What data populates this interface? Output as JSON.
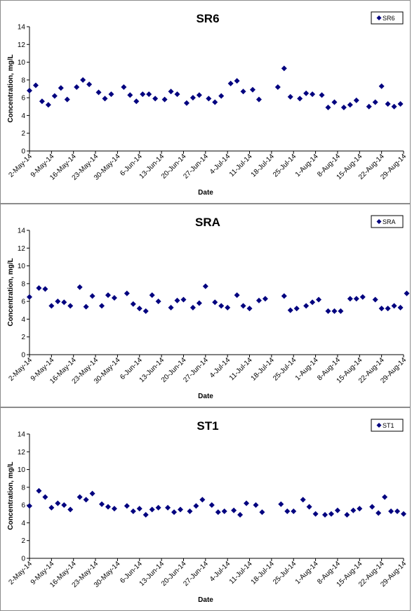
{
  "chart_data": [
    {
      "type": "scatter",
      "title": "SR6",
      "xlabel": "Date",
      "ylabel": "Concentration, mg/L",
      "ylim": [
        0,
        14
      ],
      "yticks": [
        0,
        2,
        4,
        6,
        8,
        10,
        12,
        14
      ],
      "xlim": [
        "2014-05-02",
        "2014-08-29"
      ],
      "xtick_labels": [
        "2-May-14",
        "9-May-14",
        "16-May-14",
        "23-May-14",
        "30-May-14",
        "6-Jun-14",
        "13-Jun-14",
        "20-Jun-14",
        "27-Jun-14",
        "4-Jul-14",
        "11-Jul-14",
        "18-Jul-14",
        "25-Jul-14",
        "1-Aug-14",
        "8-Aug-14",
        "15-Aug-14",
        "22-Aug-14",
        "29-Aug-14"
      ],
      "legend": "top-right",
      "marker_color": "#00007f",
      "series": [
        {
          "name": "SR6",
          "points": [
            [
              "2014-05-02",
              6.8
            ],
            [
              "2014-05-04",
              7.4
            ],
            [
              "2014-05-06",
              5.6
            ],
            [
              "2014-05-08",
              5.2
            ],
            [
              "2014-05-10",
              6.2
            ],
            [
              "2014-05-12",
              7.1
            ],
            [
              "2014-05-14",
              5.8
            ],
            [
              "2014-05-17",
              7.2
            ],
            [
              "2014-05-19",
              8.0
            ],
            [
              "2014-05-21",
              7.5
            ],
            [
              "2014-05-24",
              6.6
            ],
            [
              "2014-05-26",
              5.9
            ],
            [
              "2014-05-28",
              6.4
            ],
            [
              "2014-06-01",
              7.2
            ],
            [
              "2014-06-03",
              6.3
            ],
            [
              "2014-06-05",
              5.6
            ],
            [
              "2014-06-07",
              6.4
            ],
            [
              "2014-06-09",
              6.4
            ],
            [
              "2014-06-11",
              5.9
            ],
            [
              "2014-06-14",
              5.8
            ],
            [
              "2014-06-16",
              6.7
            ],
            [
              "2014-06-18",
              6.4
            ],
            [
              "2014-06-21",
              5.4
            ],
            [
              "2014-06-23",
              6.0
            ],
            [
              "2014-06-25",
              6.3
            ],
            [
              "2014-06-28",
              5.9
            ],
            [
              "2014-06-30",
              5.5
            ],
            [
              "2014-07-02",
              6.2
            ],
            [
              "2014-07-05",
              7.6
            ],
            [
              "2014-07-07",
              7.9
            ],
            [
              "2014-07-09",
              6.7
            ],
            [
              "2014-07-12",
              6.9
            ],
            [
              "2014-07-14",
              5.8
            ],
            [
              "2014-07-20",
              7.2
            ],
            [
              "2014-07-22",
              9.3
            ],
            [
              "2014-07-24",
              6.1
            ],
            [
              "2014-07-27",
              5.9
            ],
            [
              "2014-07-29",
              6.5
            ],
            [
              "2014-07-31",
              6.4
            ],
            [
              "2014-08-03",
              6.3
            ],
            [
              "2014-08-05",
              4.9
            ],
            [
              "2014-08-07",
              5.5
            ],
            [
              "2014-08-10",
              4.9
            ],
            [
              "2014-08-12",
              5.2
            ],
            [
              "2014-08-14",
              5.7
            ],
            [
              "2014-08-18",
              5.0
            ],
            [
              "2014-08-20",
              5.5
            ],
            [
              "2014-08-22",
              7.3
            ],
            [
              "2014-08-24",
              5.3
            ],
            [
              "2014-08-26",
              5.0
            ],
            [
              "2014-08-28",
              5.3
            ]
          ]
        }
      ]
    },
    {
      "type": "scatter",
      "title": "SRA",
      "xlabel": "Date",
      "ylabel": "Concentration, mg/L",
      "ylim": [
        0,
        14
      ],
      "yticks": [
        0,
        2,
        4,
        6,
        8,
        10,
        12,
        14
      ],
      "xlim": [
        "2014-05-02",
        "2014-08-29"
      ],
      "xtick_labels": [
        "2-May-14",
        "9-May-14",
        "16-May-14",
        "23-May-14",
        "30-May-14",
        "6-Jun-14",
        "13-Jun-14",
        "20-Jun-14",
        "27-Jun-14",
        "4-Jul-14",
        "11-Jul-14",
        "18-Jul-14",
        "25-Jul-14",
        "1-Aug-14",
        "8-Aug-14",
        "15-Aug-14",
        "22-Aug-14",
        "29-Aug-14"
      ],
      "legend": "top-right",
      "marker_color": "#00007f",
      "series": [
        {
          "name": "SRA",
          "points": [
            [
              "2014-05-02",
              6.5
            ],
            [
              "2014-05-05",
              7.5
            ],
            [
              "2014-05-07",
              7.4
            ],
            [
              "2014-05-09",
              5.5
            ],
            [
              "2014-05-11",
              6.0
            ],
            [
              "2014-05-13",
              5.9
            ],
            [
              "2014-05-15",
              5.5
            ],
            [
              "2014-05-18",
              7.6
            ],
            [
              "2014-05-20",
              5.4
            ],
            [
              "2014-05-22",
              6.6
            ],
            [
              "2014-05-25",
              5.5
            ],
            [
              "2014-05-27",
              6.7
            ],
            [
              "2014-05-29",
              6.4
            ],
            [
              "2014-06-02",
              6.9
            ],
            [
              "2014-06-04",
              5.7
            ],
            [
              "2014-06-06",
              5.2
            ],
            [
              "2014-06-08",
              4.9
            ],
            [
              "2014-06-10",
              6.7
            ],
            [
              "2014-06-12",
              6.0
            ],
            [
              "2014-06-16",
              5.3
            ],
            [
              "2014-06-18",
              6.1
            ],
            [
              "2014-06-20",
              6.2
            ],
            [
              "2014-06-23",
              5.3
            ],
            [
              "2014-06-25",
              5.8
            ],
            [
              "2014-06-27",
              7.7
            ],
            [
              "2014-06-30",
              5.9
            ],
            [
              "2014-07-02",
              5.5
            ],
            [
              "2014-07-04",
              5.3
            ],
            [
              "2014-07-07",
              6.7
            ],
            [
              "2014-07-09",
              5.5
            ],
            [
              "2014-07-11",
              5.2
            ],
            [
              "2014-07-14",
              6.1
            ],
            [
              "2014-07-16",
              6.3
            ],
            [
              "2014-07-22",
              6.6
            ],
            [
              "2014-07-24",
              5.0
            ],
            [
              "2014-07-26",
              5.2
            ],
            [
              "2014-07-29",
              5.5
            ],
            [
              "2014-07-31",
              5.9
            ],
            [
              "2014-08-02",
              6.2
            ],
            [
              "2014-08-05",
              4.9
            ],
            [
              "2014-08-07",
              4.9
            ],
            [
              "2014-08-09",
              4.9
            ],
            [
              "2014-08-12",
              6.3
            ],
            [
              "2014-08-14",
              6.3
            ],
            [
              "2014-08-16",
              6.5
            ],
            [
              "2014-08-20",
              6.2
            ],
            [
              "2014-08-22",
              5.2
            ],
            [
              "2014-08-24",
              5.2
            ],
            [
              "2014-08-26",
              5.5
            ],
            [
              "2014-08-28",
              5.3
            ],
            [
              "2014-08-30",
              6.9
            ]
          ]
        }
      ]
    },
    {
      "type": "scatter",
      "title": "ST1",
      "xlabel": "Date",
      "ylabel": "Concentration, mg/L",
      "ylim": [
        0,
        14
      ],
      "yticks": [
        0,
        2,
        4,
        6,
        8,
        10,
        12,
        14
      ],
      "xlim": [
        "2014-05-02",
        "2014-08-29"
      ],
      "xtick_labels": [
        "2-May-14",
        "9-May-14",
        "16-May-14",
        "23-May-14",
        "30-May-14",
        "6-Jun-14",
        "13-Jun-14",
        "20-Jun-14",
        "27-Jun-14",
        "4-Jul-14",
        "11-Jul-14",
        "18-Jul-14",
        "25-Jul-14",
        "1-Aug-14",
        "8-Aug-14",
        "15-Aug-14",
        "22-Aug-14",
        "29-Aug-14"
      ],
      "legend": "top-right",
      "marker_color": "#00007f",
      "series": [
        {
          "name": "ST1",
          "points": [
            [
              "2014-05-02",
              5.9
            ],
            [
              "2014-05-05",
              7.6
            ],
            [
              "2014-05-07",
              6.9
            ],
            [
              "2014-05-09",
              5.7
            ],
            [
              "2014-05-11",
              6.2
            ],
            [
              "2014-05-13",
              6.0
            ],
            [
              "2014-05-15",
              5.5
            ],
            [
              "2014-05-18",
              6.9
            ],
            [
              "2014-05-20",
              6.6
            ],
            [
              "2014-05-22",
              7.3
            ],
            [
              "2014-05-25",
              6.1
            ],
            [
              "2014-05-27",
              5.8
            ],
            [
              "2014-05-29",
              5.6
            ],
            [
              "2014-06-02",
              5.9
            ],
            [
              "2014-06-04",
              5.3
            ],
            [
              "2014-06-06",
              5.6
            ],
            [
              "2014-06-08",
              4.9
            ],
            [
              "2014-06-10",
              5.5
            ],
            [
              "2014-06-12",
              5.7
            ],
            [
              "2014-06-15",
              5.7
            ],
            [
              "2014-06-17",
              5.2
            ],
            [
              "2014-06-19",
              5.5
            ],
            [
              "2014-06-22",
              5.3
            ],
            [
              "2014-06-24",
              5.9
            ],
            [
              "2014-06-26",
              6.6
            ],
            [
              "2014-06-29",
              6.0
            ],
            [
              "2014-07-01",
              5.2
            ],
            [
              "2014-07-03",
              5.3
            ],
            [
              "2014-07-06",
              5.4
            ],
            [
              "2014-07-08",
              4.9
            ],
            [
              "2014-07-10",
              6.2
            ],
            [
              "2014-07-13",
              6.0
            ],
            [
              "2014-07-15",
              5.2
            ],
            [
              "2014-07-21",
              6.1
            ],
            [
              "2014-07-23",
              5.3
            ],
            [
              "2014-07-25",
              5.3
            ],
            [
              "2014-07-28",
              6.6
            ],
            [
              "2014-07-30",
              5.8
            ],
            [
              "2014-08-01",
              5.0
            ],
            [
              "2014-08-04",
              4.9
            ],
            [
              "2014-08-06",
              5.0
            ],
            [
              "2014-08-08",
              5.4
            ],
            [
              "2014-08-11",
              4.9
            ],
            [
              "2014-08-13",
              5.4
            ],
            [
              "2014-08-15",
              5.6
            ],
            [
              "2014-08-19",
              5.8
            ],
            [
              "2014-08-21",
              5.1
            ],
            [
              "2014-08-23",
              6.9
            ],
            [
              "2014-08-25",
              5.3
            ],
            [
              "2014-08-27",
              5.3
            ],
            [
              "2014-08-29",
              5.0
            ]
          ]
        }
      ]
    }
  ]
}
